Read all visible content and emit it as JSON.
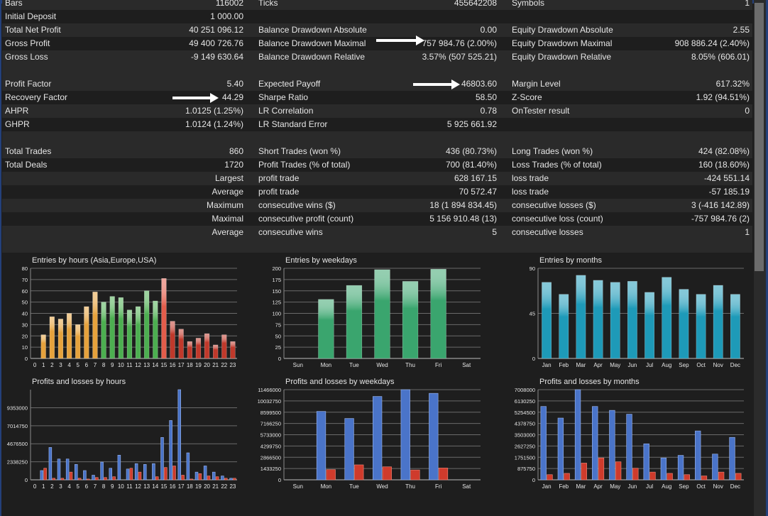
{
  "stats_rows": [
    {
      "cls": "odd",
      "l1": "Bars",
      "v1": "116002",
      "l2": "Ticks",
      "v2": "455642208",
      "l3": "Symbols",
      "v3": "1"
    },
    {
      "cls": "even",
      "l1": "Initial Deposit",
      "v1": "1 000.00",
      "l2": "",
      "v2": "",
      "l3": "",
      "v3": ""
    },
    {
      "cls": "odd",
      "l1": "Total Net Profit",
      "v1": "40 251 096.12",
      "l2": "Balance Drawdown Absolute",
      "v2": "0.00",
      "l3": "Equity Drawdown Absolute",
      "v3": "2.55"
    },
    {
      "cls": "even",
      "l1": "Gross Profit",
      "v1": "49 400 726.76",
      "l2": "Balance Drawdown Maximal",
      "v2": "757 984.76 (2.00%)",
      "l3": "Equity Drawdown Maximal",
      "v3": "908 886.24 (2.40%)"
    },
    {
      "cls": "odd",
      "l1": "Gross Loss",
      "v1": "-9 149 630.64",
      "l2": "Balance Drawdown Relative",
      "v2": "3.57% (507 525.21)",
      "l3": "Equity Drawdown Relative",
      "v3": "8.05% (606.01)"
    },
    {
      "cls": "spacer",
      "l1": "",
      "v1": "",
      "l2": "",
      "v2": "",
      "l3": "",
      "v3": ""
    },
    {
      "cls": "odd",
      "l1": "Profit Factor",
      "v1": "5.40",
      "l2": "Expected Payoff",
      "v2": "46803.60",
      "l3": "Margin Level",
      "v3": "617.32%"
    },
    {
      "cls": "even",
      "l1": "Recovery Factor",
      "v1": "44.29",
      "l2": "Sharpe Ratio",
      "v2": "58.50",
      "l3": "Z-Score",
      "v3": "1.92 (94.51%)"
    },
    {
      "cls": "odd",
      "l1": "AHPR",
      "v1": "1.0125 (1.25%)",
      "l2": "LR Correlation",
      "v2": "0.78",
      "l3": "OnTester result",
      "v3": "0"
    },
    {
      "cls": "even",
      "l1": "GHPR",
      "v1": "1.0124 (1.24%)",
      "l2": "LR Standard Error",
      "v2": "5 925 661.92",
      "l3": "",
      "v3": ""
    },
    {
      "cls": "spacer",
      "l1": "",
      "v1": "",
      "l2": "",
      "v2": "",
      "l3": "",
      "v3": ""
    },
    {
      "cls": "odd",
      "l1": "Total Trades",
      "v1": "860",
      "l2": "Short Trades (won %)",
      "v2": "436 (80.73%)",
      "l3": "Long Trades (won %)",
      "v3": "424 (82.08%)"
    },
    {
      "cls": "even",
      "l1": "Total Deals",
      "v1": "1720",
      "l2": "Profit Trades (% of total)",
      "v2": "700 (81.40%)",
      "l3": "Loss Trades (% of total)",
      "v3": "160 (18.60%)"
    },
    {
      "cls": "odd",
      "lr": "Largest",
      "l2": "profit trade",
      "v2": "628 167.15",
      "l3": "loss trade",
      "v3": "-424 551.14"
    },
    {
      "cls": "even",
      "lr": "Average",
      "l2": "profit trade",
      "v2": "70 572.47",
      "l3": "loss trade",
      "v3": "-57 185.19"
    },
    {
      "cls": "odd",
      "lr": "Maximum",
      "l2": "consecutive wins ($)",
      "v2": "18 (1 894 834.45)",
      "l3": "consecutive losses ($)",
      "v3": "3 (-416 142.89)"
    },
    {
      "cls": "even",
      "lr": "Maximal",
      "l2": "consecutive profit (count)",
      "v2": "5 156 910.48 (13)",
      "l3": "consecutive loss (count)",
      "v3": "-757 984.76 (2)"
    },
    {
      "cls": "odd",
      "lr": "Average",
      "l2": "consecutive wins",
      "v2": "5",
      "l3": "consecutive losses",
      "v3": "1"
    },
    {
      "cls": "spacer",
      "l1": "",
      "v1": "",
      "l2": "",
      "v2": "",
      "l3": "",
      "v3": ""
    }
  ],
  "chart_data": [
    {
      "id": "entries-hours",
      "type": "bar",
      "title": "Entries by hours (Asia,Europe,USA)",
      "categories": [
        "0",
        "1",
        "2",
        "3",
        "4",
        "5",
        "6",
        "7",
        "8",
        "9",
        "10",
        "11",
        "12",
        "13",
        "14",
        "15",
        "16",
        "17",
        "18",
        "19",
        "20",
        "21",
        "22",
        "23"
      ],
      "values": [
        0,
        21,
        37,
        35,
        40,
        30,
        46,
        59,
        50,
        55,
        54,
        43,
        46,
        60,
        51,
        71,
        33,
        26,
        15,
        18,
        22,
        12,
        21,
        15
      ],
      "region_colors": [
        "#e6a23c",
        "#e6a23c",
        "#e6a23c",
        "#e6a23c",
        "#e6a23c",
        "#e6a23c",
        "#e6a23c",
        "#e6a23c",
        "#4caf50",
        "#4caf50",
        "#4caf50",
        "#4caf50",
        "#4caf50",
        "#4caf50",
        "#4caf50",
        "#e35d4b",
        "#c0392b",
        "#c0392b",
        "#c0392b",
        "#c0392b",
        "#c0392b",
        "#c0392b",
        "#c0392b",
        "#c0392b"
      ],
      "yticks": [
        "0",
        "10",
        "20",
        "30",
        "40",
        "50",
        "60",
        "70",
        "80"
      ],
      "ylim": [
        0,
        80
      ]
    },
    {
      "id": "entries-weekdays",
      "type": "bar",
      "title": "Entries by weekdays",
      "categories": [
        "Sun",
        "Mon",
        "Tue",
        "Wed",
        "Thu",
        "Fri",
        "Sat"
      ],
      "values": [
        0,
        131,
        162,
        197,
        171,
        198,
        0
      ],
      "color": "#3aa56e",
      "yticks": [
        "0",
        "25",
        "50",
        "75",
        "100",
        "125",
        "150",
        "175",
        "200"
      ],
      "ylim": [
        0,
        200
      ]
    },
    {
      "id": "entries-months",
      "type": "bar",
      "title": "Entries by months",
      "categories": [
        "Jan",
        "Feb",
        "Mar",
        "Apr",
        "May",
        "Jun",
        "Jul",
        "Aug",
        "Sep",
        "Oct",
        "Nov",
        "Dec"
      ],
      "values": [
        76,
        64,
        83,
        78,
        76,
        77,
        66,
        81,
        69,
        64,
        73,
        64
      ],
      "color": "#1e9ab8",
      "yticks": [
        "0",
        "45",
        "90"
      ],
      "ylim": [
        0,
        90
      ]
    },
    {
      "id": "pl-hours",
      "type": "bar",
      "title": "Profits and losses by hours",
      "categories": [
        "0",
        "1",
        "2",
        "3",
        "4",
        "5",
        "6",
        "7",
        "8",
        "9",
        "10",
        "11",
        "12",
        "13",
        "14",
        "15",
        "16",
        "17",
        "18",
        "19",
        "20",
        "21",
        "22",
        "23"
      ],
      "series": [
        {
          "values": [
            0,
            1200000,
            4200000,
            2700000,
            2700000,
            2000000,
            1200000,
            600000,
            2300000,
            1500000,
            3200000,
            1400000,
            2100000,
            2000000,
            2100000,
            5500000,
            7700000,
            11700000,
            3500000,
            1000000,
            1800000,
            1000000,
            500000,
            200000
          ]
        },
        {
          "values": [
            0,
            1500000,
            200000,
            200000,
            1000000,
            200000,
            100000,
            300000,
            300000,
            400000,
            0,
            1500000,
            1000000,
            0,
            400000,
            1600000,
            1800000,
            600000,
            100000,
            800000,
            500000,
            400000,
            200000,
            200000
          ]
        }
      ],
      "colors": [
        "#4a74c9",
        "#cf3b2c"
      ],
      "yticks": [
        "0",
        "2338250",
        "4676500",
        "7014750",
        "9353000"
      ],
      "ylim": [
        0,
        11700000
      ]
    },
    {
      "id": "pl-weekdays",
      "type": "bar",
      "title": "Profits and losses by weekdays",
      "categories": [
        "Sun",
        "Mon",
        "Tue",
        "Wed",
        "Thu",
        "Fri",
        "Sat"
      ],
      "series": [
        {
          "values": [
            0,
            8700000,
            7800000,
            10600000,
            11466000,
            11000000,
            0
          ]
        },
        {
          "values": [
            0,
            1300000,
            1900000,
            1650000,
            1250000,
            1500000,
            0
          ]
        }
      ],
      "colors": [
        "#4a74c9",
        "#cf3b2c"
      ],
      "yticks": [
        "0",
        "1433250",
        "2866500",
        "4299750",
        "5733000",
        "7166250",
        "8599500",
        "10032750",
        "11466000"
      ],
      "ylim": [
        0,
        11466000
      ]
    },
    {
      "id": "pl-months",
      "type": "bar",
      "title": "Profits and losses by months",
      "categories": [
        "Jan",
        "Feb",
        "Mar",
        "Apr",
        "May",
        "Jun",
        "Jul",
        "Aug",
        "Sep",
        "Oct",
        "Nov",
        "Dec"
      ],
      "series": [
        {
          "values": [
            5700000,
            4800000,
            7008000,
            5700000,
            5400000,
            5100000,
            2800000,
            1700000,
            1900000,
            3800000,
            2000000,
            3300000
          ]
        },
        {
          "values": [
            400000,
            500000,
            1300000,
            1700000,
            1400000,
            900000,
            600000,
            500000,
            400000,
            300000,
            600000,
            500000
          ]
        }
      ],
      "colors": [
        "#4a74c9",
        "#cf3b2c"
      ],
      "yticks": [
        "0",
        "875750",
        "1751500",
        "2627250",
        "3503000",
        "4378750",
        "5254500",
        "6130250",
        "7008000"
      ],
      "ylim": [
        0,
        7008000
      ]
    }
  ]
}
